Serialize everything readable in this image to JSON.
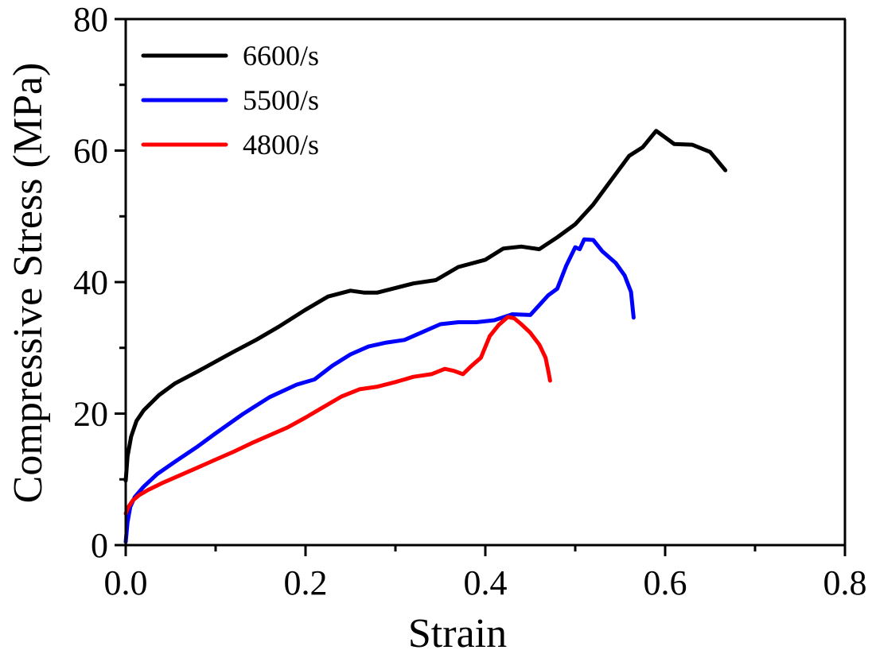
{
  "chart_data": {
    "type": "line",
    "title": "",
    "xlabel": "Strain",
    "ylabel": "Compressive Stress (MPa)",
    "xlim": [
      0,
      0.8
    ],
    "ylim": [
      0,
      80
    ],
    "x_ticks": [
      0.0,
      0.2,
      0.4,
      0.6,
      0.8
    ],
    "x_tick_labels": [
      "0.0",
      "0.2",
      "0.4",
      "0.6",
      "0.8"
    ],
    "x_minor_ticks": [
      0.1,
      0.3,
      0.5,
      0.7
    ],
    "y_ticks": [
      0,
      20,
      40,
      60,
      80
    ],
    "y_tick_labels": [
      "0",
      "20",
      "40",
      "60",
      "80"
    ],
    "y_minor_ticks": [
      10,
      30,
      50,
      70
    ],
    "grid": false,
    "legend_position": "top-left",
    "series": [
      {
        "name": "6600/s",
        "color": "#000000",
        "x": [
          0.0,
          0.002,
          0.006,
          0.012,
          0.02,
          0.037,
          0.055,
          0.08,
          0.1,
          0.12,
          0.145,
          0.17,
          0.2,
          0.225,
          0.25,
          0.265,
          0.28,
          0.3,
          0.32,
          0.345,
          0.37,
          0.4,
          0.42,
          0.44,
          0.46,
          0.48,
          0.5,
          0.52,
          0.54,
          0.56,
          0.575,
          0.59,
          0.6,
          0.61,
          0.63,
          0.65,
          0.667
        ],
        "y": [
          9.8,
          13.5,
          16.5,
          18.9,
          20.5,
          22.8,
          24.6,
          26.4,
          27.9,
          29.4,
          31.2,
          33.2,
          35.8,
          37.8,
          38.7,
          38.4,
          38.4,
          39.1,
          39.8,
          40.3,
          42.3,
          43.4,
          45.1,
          45.4,
          45.0,
          46.8,
          48.8,
          51.8,
          55.5,
          59.2,
          60.5,
          63.0,
          62.0,
          61.0,
          60.9,
          59.8,
          57.0
        ]
      },
      {
        "name": "5500/s",
        "color": "#0000ff",
        "x": [
          0.0,
          0.002,
          0.005,
          0.01,
          0.02,
          0.035,
          0.055,
          0.08,
          0.1,
          0.13,
          0.16,
          0.19,
          0.21,
          0.23,
          0.25,
          0.27,
          0.29,
          0.31,
          0.33,
          0.35,
          0.37,
          0.39,
          0.41,
          0.43,
          0.45,
          0.47,
          0.48,
          0.49,
          0.5,
          0.505,
          0.51,
          0.52,
          0.53,
          0.545,
          0.555,
          0.562,
          0.565
        ],
        "y": [
          0.5,
          3.5,
          5.8,
          7.3,
          8.9,
          10.8,
          12.7,
          15.0,
          17.0,
          19.9,
          22.5,
          24.4,
          25.2,
          27.3,
          29.0,
          30.2,
          30.8,
          31.2,
          32.4,
          33.6,
          33.9,
          33.9,
          34.2,
          35.1,
          35.0,
          38.0,
          39.0,
          42.5,
          45.3,
          45.0,
          46.5,
          46.4,
          44.7,
          42.9,
          41.0,
          38.5,
          34.6
        ]
      },
      {
        "name": "4800/s",
        "color": "#ff0000",
        "x": [
          0.0,
          0.003,
          0.008,
          0.015,
          0.025,
          0.04,
          0.06,
          0.08,
          0.1,
          0.12,
          0.14,
          0.16,
          0.18,
          0.2,
          0.22,
          0.24,
          0.26,
          0.28,
          0.3,
          0.32,
          0.34,
          0.355,
          0.365,
          0.375,
          0.385,
          0.395,
          0.405,
          0.415,
          0.425,
          0.432,
          0.44,
          0.45,
          0.46,
          0.467,
          0.47,
          0.472
        ],
        "y": [
          4.8,
          5.8,
          6.8,
          7.6,
          8.4,
          9.4,
          10.6,
          11.8,
          13.0,
          14.2,
          15.5,
          16.7,
          17.9,
          19.4,
          21.0,
          22.6,
          23.7,
          24.1,
          24.8,
          25.6,
          26.0,
          26.8,
          26.5,
          26.0,
          27.3,
          28.5,
          31.8,
          33.5,
          34.7,
          34.5,
          33.6,
          32.3,
          30.5,
          28.5,
          26.5,
          25.0
        ]
      }
    ]
  }
}
